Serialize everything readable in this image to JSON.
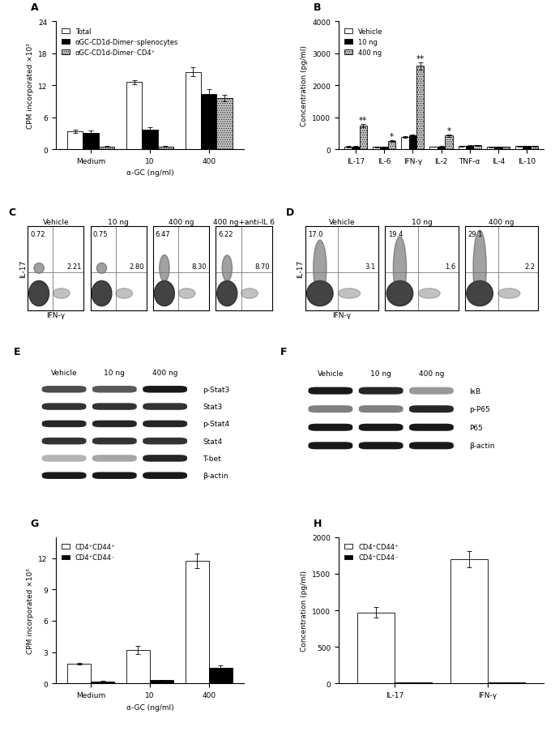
{
  "chart_data": [
    {
      "type": "bar",
      "panel": "A",
      "ylabel": "CPM incorporated ×10³",
      "xlabel": "α-GC (ng/ml)",
      "categories": [
        "Medium",
        "10",
        "400"
      ],
      "series": [
        {
          "name": "Total",
          "color": "#ffffff",
          "values": [
            3.3,
            12.6,
            14.5
          ],
          "errors": [
            0.3,
            0.4,
            0.8
          ]
        },
        {
          "name": "αGC-CD1d-Dimer⁻splenocytes",
          "color": "#000000",
          "values": [
            3.0,
            3.7,
            10.4
          ],
          "errors": [
            0.5,
            0.4,
            0.9
          ]
        },
        {
          "name": "αGC-CD1d-Dimer⁻CD4⁺",
          "color": "#c8c8c8",
          "values": [
            0.5,
            0.5,
            9.6
          ],
          "errors": [
            0.1,
            0.1,
            0.6
          ]
        }
      ],
      "ylim": [
        0,
        24
      ],
      "yticks": [
        0,
        6,
        12,
        18,
        24
      ],
      "grid": false,
      "legend": "upper left"
    },
    {
      "type": "bar",
      "panel": "B",
      "ylabel": "Concentration (pg/ml)",
      "categories": [
        "IL-17",
        "IL-6",
        "IFN-γ",
        "IL-2",
        "TNF-α",
        "IL-4",
        "IL-10"
      ],
      "series": [
        {
          "name": "Vehicle",
          "color": "#ffffff",
          "values": [
            80,
            70,
            380,
            80,
            100,
            70,
            100
          ],
          "errors": [
            15,
            10,
            30,
            10,
            10,
            10,
            10
          ]
        },
        {
          "name": "10 ng",
          "color": "#000000",
          "values": [
            90,
            80,
            430,
            90,
            110,
            80,
            100
          ],
          "errors": [
            15,
            10,
            40,
            10,
            10,
            10,
            10
          ]
        },
        {
          "name": "400 ng",
          "color": "#c8c8c8",
          "values": [
            740,
            250,
            2600,
            430,
            120,
            80,
            100
          ],
          "errors": [
            50,
            30,
            110,
            40,
            15,
            10,
            10
          ]
        }
      ],
      "annotations": [
        {
          "category": "IL-17",
          "series": "400 ng",
          "text": "**"
        },
        {
          "category": "IL-6",
          "series": "400 ng",
          "text": "*"
        },
        {
          "category": "IFN-γ",
          "series": "400 ng",
          "text": "**"
        },
        {
          "category": "IL-2",
          "series": "400 ng",
          "text": "*"
        }
      ],
      "ylim": [
        0,
        4000
      ],
      "yticks": [
        0,
        1000,
        2000,
        3000,
        4000
      ],
      "grid": false,
      "legend": "upper left"
    },
    {
      "type": "flow",
      "panel": "C",
      "xlabel": "IFN-γ",
      "ylabel": "IL-17",
      "plots": [
        {
          "title": "Vehicle",
          "upper_left": "0.72",
          "lower_right": "2.21"
        },
        {
          "title": "10 ng",
          "upper_left": "0.75",
          "lower_right": "2.80"
        },
        {
          "title": "400 ng",
          "upper_left": "6.47",
          "lower_right": "8.30"
        },
        {
          "title": "400 ng+anti-IL 6",
          "upper_left": "6.22",
          "lower_right": "8.70"
        }
      ]
    },
    {
      "type": "flow",
      "panel": "D",
      "xlabel": "IFN-γ",
      "ylabel": "IL-17",
      "plots": [
        {
          "title": "Vehicle",
          "upper_left": "17.0",
          "lower_right": "3.1"
        },
        {
          "title": "10 ng",
          "upper_left": "19.4",
          "lower_right": "1.6"
        },
        {
          "title": "400 ng",
          "upper_left": "29.1",
          "lower_right": "2.2"
        }
      ]
    },
    {
      "type": "blot",
      "panel": "E",
      "lanes": [
        "Vehicle",
        "10 ng",
        "400 ng"
      ],
      "rows": [
        {
          "name": "p-Stat3",
          "intensity": [
            0.7,
            0.65,
            0.9
          ]
        },
        {
          "name": "Stat3",
          "intensity": [
            0.8,
            0.8,
            0.8
          ]
        },
        {
          "name": "p-Stat4",
          "intensity": [
            0.85,
            0.85,
            0.85
          ]
        },
        {
          "name": "Stat4",
          "intensity": [
            0.8,
            0.8,
            0.8
          ]
        },
        {
          "name": "T-bet",
          "intensity": [
            0.3,
            0.35,
            0.85
          ]
        },
        {
          "name": "β-actin",
          "intensity": [
            0.9,
            0.9,
            0.9
          ]
        }
      ]
    },
    {
      "type": "blot",
      "panel": "F",
      "lanes": [
        "Vehicle",
        "10 ng",
        "400 ng"
      ],
      "rows": [
        {
          "name": "IκB",
          "intensity": [
            0.9,
            0.85,
            0.4
          ]
        },
        {
          "name": "p-P65",
          "intensity": [
            0.5,
            0.5,
            0.85
          ]
        },
        {
          "name": "P65",
          "intensity": [
            0.9,
            0.9,
            0.9
          ]
        },
        {
          "name": "β-actin",
          "intensity": [
            0.9,
            0.9,
            0.9
          ]
        }
      ]
    },
    {
      "type": "bar",
      "panel": "G",
      "ylabel": "CPM incorporated ×10³",
      "xlabel": "α-GC (ng/ml)",
      "categories": [
        "Medium",
        "10",
        "400"
      ],
      "series": [
        {
          "name": "CD4⁺CD44⁺",
          "color": "#ffffff",
          "values": [
            1.9,
            3.2,
            11.7
          ],
          "errors": [
            0.1,
            0.4,
            0.7
          ]
        },
        {
          "name": "CD4⁺CD44⁻",
          "color": "#000000",
          "values": [
            0.2,
            0.3,
            1.5
          ],
          "errors": [
            0.05,
            0.05,
            0.2
          ]
        }
      ],
      "ylim": [
        0,
        14
      ],
      "yticks": [
        0,
        3,
        6,
        9,
        12
      ],
      "grid": false,
      "legend": "upper left"
    },
    {
      "type": "bar",
      "panel": "H",
      "ylabel": "Concentration (pg/ml)",
      "categories": [
        "IL-17",
        "IFN-γ"
      ],
      "series": [
        {
          "name": "CD4⁺CD44⁺",
          "color": "#ffffff",
          "values": [
            970,
            1700
          ],
          "errors": [
            70,
            110
          ]
        },
        {
          "name": "CD4⁺CD44⁻",
          "color": "#000000",
          "values": [
            10,
            10
          ],
          "errors": [
            3,
            3
          ]
        }
      ],
      "ylim": [
        0,
        2000
      ],
      "yticks": [
        0,
        500,
        1000,
        1500,
        2000
      ],
      "grid": false,
      "legend": "upper left"
    }
  ]
}
